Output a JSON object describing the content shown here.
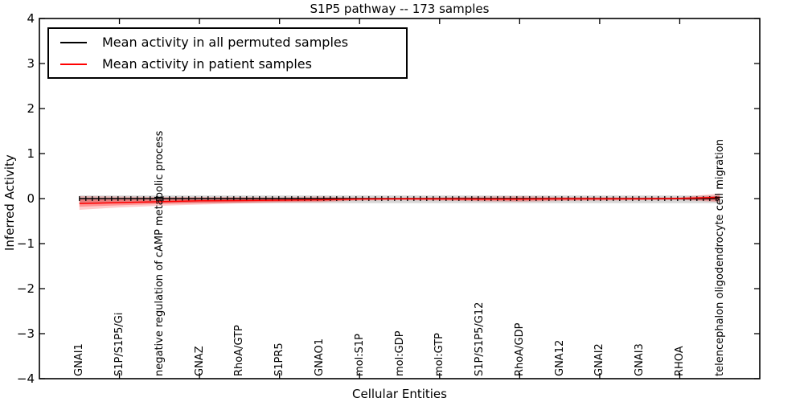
{
  "chart_data": {
    "type": "line",
    "title": "S1P5 pathway -- 173 samples",
    "xlabel": "Cellular Entities",
    "ylabel": "Inferred Activity",
    "ylim": [
      -4,
      4
    ],
    "yticks": [
      4,
      3,
      2,
      1,
      0,
      -1,
      -2,
      -3,
      -4
    ],
    "ytick_labels": [
      "4",
      "3",
      "2",
      "1",
      "0",
      "−1",
      "−2",
      "−3",
      "−4"
    ],
    "grid": false,
    "legend_position": "upper-left",
    "categories": [
      "GNAI1",
      "S1P/S1P5/Gi",
      "negative regulation of cAMP metabolic process",
      "GNAZ",
      "RhoA/GTP",
      "S1PR5",
      "GNAO1",
      "mol:S1P",
      "mol:GDP",
      "mol:GTP",
      "S1P/S1P5/G12",
      "RhoA/GDP",
      "GNA12",
      "GNAI2",
      "GNAI3",
      "RHOA",
      "telencephalon oligodendrocyte cell migration"
    ],
    "series": [
      {
        "name": "Mean activity in all permuted samples",
        "color": "#000000",
        "style": "solid line at zero with dense small vertical sample ticks",
        "values": [
          0,
          0,
          0,
          0,
          0,
          0,
          0,
          0,
          0,
          0,
          0,
          0,
          0,
          0,
          0,
          0,
          0
        ],
        "band": {
          "color": "#787878",
          "alpha": 0.3,
          "upper": [
            0.07,
            0.07,
            0.07,
            0.07,
            0.07,
            0.07,
            0.07,
            0.07,
            0.07,
            0.07,
            0.07,
            0.07,
            0.07,
            0.07,
            0.07,
            0.07,
            0.07
          ],
          "lower": [
            -0.1,
            -0.1,
            -0.1,
            -0.1,
            -0.1,
            -0.1,
            -0.1,
            -0.1,
            -0.1,
            -0.1,
            -0.1,
            -0.1,
            -0.1,
            -0.1,
            -0.1,
            -0.1,
            -0.1
          ]
        }
      },
      {
        "name": "Mean activity in patient samples",
        "color": "#ff0000",
        "style": "solid line with shaded uncertainty bands",
        "values": [
          -0.11,
          -0.09,
          -0.07,
          -0.05,
          -0.045,
          -0.035,
          -0.027,
          -0.01,
          -0.005,
          -0.007,
          -0.011,
          -0.011,
          -0.005,
          -0.004,
          -0.004,
          0.004,
          0.027
        ],
        "band_outer": {
          "alpha": 0.2,
          "upper": [
            0.054,
            0.045,
            0.036,
            0.036,
            0.036,
            0.027,
            0.045,
            0.021,
            0.018,
            0.027,
            0.045,
            0.054,
            0.036,
            0.032,
            0.027,
            0.027,
            0.116
          ],
          "lower": [
            -0.25,
            -0.196,
            -0.161,
            -0.134,
            -0.107,
            -0.09,
            -0.08,
            -0.045,
            -0.036,
            -0.045,
            -0.063,
            -0.071,
            -0.054,
            -0.045,
            -0.036,
            -0.027,
            -0.08
          ]
        },
        "band_inner": {
          "alpha": 0.28,
          "upper": [
            -0.02,
            -0.02,
            -0.02,
            -0.015,
            -0.01,
            -0.005,
            0,
            0.005,
            0.005,
            0.01,
            0.015,
            0.02,
            0.01,
            0.008,
            0.006,
            0.01,
            0.06
          ],
          "lower": [
            -0.18,
            -0.15,
            -0.12,
            -0.1,
            -0.085,
            -0.07,
            -0.06,
            -0.03,
            -0.025,
            -0.03,
            -0.04,
            -0.045,
            -0.035,
            -0.03,
            -0.025,
            -0.02,
            -0.05
          ]
        }
      }
    ]
  }
}
